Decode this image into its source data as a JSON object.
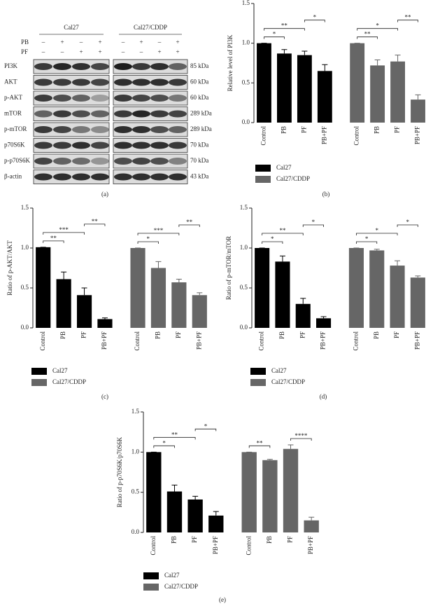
{
  "blot": {
    "panel_label": "(a)",
    "groups": [
      "Cal27",
      "Cal27/CDDP"
    ],
    "treatments": [
      {
        "name": "PB",
        "signs": [
          "–",
          "+",
          "–",
          "+",
          "–",
          "+",
          "–",
          "+"
        ]
      },
      {
        "name": "PF",
        "signs": [
          "–",
          "–",
          "+",
          "+",
          "–",
          "–",
          "+",
          "+"
        ]
      }
    ],
    "rows": [
      {
        "protein": "PI3K",
        "size": "85 kDa"
      },
      {
        "protein": "AKT",
        "size": "60 kDa"
      },
      {
        "protein": "p-AKT",
        "size": "60 kDa"
      },
      {
        "protein": "mTOR",
        "size": "289 kDa"
      },
      {
        "protein": "p-mTOR",
        "size": "289 kDa"
      },
      {
        "protein": "p70S6K",
        "size": "70 kDa"
      },
      {
        "protein": "p-p70S6K",
        "size": "70 kDa"
      },
      {
        "protein": "β-actin",
        "size": "43 kDa"
      }
    ]
  },
  "chart_data": [
    {
      "type": "bar",
      "panel_label": "(b)",
      "y_label": "Relative level of PI3K",
      "legend": "below",
      "categories": [
        "Control",
        "PB",
        "PF",
        "PB+PF"
      ],
      "ylim": [
        0,
        1.5
      ],
      "yticks": [
        {
          "value": 0,
          "label": "0.0"
        },
        0.5,
        {
          "value": 1,
          "label": "1.0"
        },
        1.5
      ],
      "series": [
        {
          "name": "Cal27",
          "color": "#000000",
          "values": [
            1.0,
            0.87,
            0.85,
            0.65
          ],
          "errors": [
            0,
            0.05,
            0.05,
            0.08
          ],
          "significance": [
            {
              "pair": [
                "Control",
                "PB"
              ],
              "label": "*"
            },
            {
              "pair": [
                "Control",
                "PF"
              ],
              "label": "**"
            },
            {
              "pair": [
                "PF",
                "PB+PF"
              ],
              "label": "*"
            }
          ]
        },
        {
          "name": "Cal27/CDDP",
          "color": "#666666",
          "values": [
            1.0,
            0.72,
            0.77,
            0.29
          ],
          "errors": [
            0,
            0.07,
            0.08,
            0.06
          ],
          "significance": [
            {
              "pair": [
                "Control",
                "PB"
              ],
              "label": "**"
            },
            {
              "pair": [
                "Control",
                "PF"
              ],
              "label": "*"
            },
            {
              "pair": [
                "PF",
                "PB+PF"
              ],
              "label": "**"
            }
          ]
        }
      ]
    },
    {
      "type": "bar",
      "panel_label": "(c)",
      "y_label": "Ratio of p-AKT/AKT",
      "legend": "below",
      "categories": [
        "Control",
        "PB",
        "PF",
        "PB+PF"
      ],
      "ylim": [
        0,
        1.5
      ],
      "yticks": [
        {
          "value": 0,
          "label": "0.0"
        },
        0.5,
        {
          "value": 1,
          "label": "1.0"
        },
        1.5
      ],
      "series": [
        {
          "name": "Cal27",
          "color": "#000000",
          "values": [
            1.01,
            0.61,
            0.41,
            0.11
          ],
          "errors": [
            0,
            0.09,
            0.09,
            0.015
          ],
          "significance": [
            {
              "pair": [
                "Control",
                "PB"
              ],
              "label": "**"
            },
            {
              "pair": [
                "Control",
                "PF"
              ],
              "label": "***"
            },
            {
              "pair": [
                "PF",
                "PB+PF"
              ],
              "label": "**"
            }
          ]
        },
        {
          "name": "Cal27/CDDP",
          "color": "#666666",
          "values": [
            1.0,
            0.75,
            0.57,
            0.41
          ],
          "errors": [
            0,
            0.08,
            0.04,
            0.03
          ],
          "significance": [
            {
              "pair": [
                "Control",
                "PB"
              ],
              "label": "*"
            },
            {
              "pair": [
                "Control",
                "PF"
              ],
              "label": "***"
            },
            {
              "pair": [
                "PF",
                "PB+PF"
              ],
              "label": "**"
            }
          ]
        }
      ]
    },
    {
      "type": "bar",
      "panel_label": "(d)",
      "y_label": "Ratio of p-mTOR/mTOR",
      "legend": "below",
      "categories": [
        "Control",
        "PB",
        "PF",
        "PB+PF"
      ],
      "ylim": [
        0,
        1.5
      ],
      "yticks": [
        {
          "value": 0,
          "label": "0.0"
        },
        0.5,
        {
          "value": 1,
          "label": "1.0"
        },
        1.5
      ],
      "series": [
        {
          "name": "Cal27",
          "color": "#000000",
          "values": [
            1.0,
            0.83,
            0.3,
            0.12
          ],
          "errors": [
            0,
            0.07,
            0.07,
            0.02
          ],
          "significance": [
            {
              "pair": [
                "Control",
                "PB"
              ],
              "label": "*"
            },
            {
              "pair": [
                "Control",
                "PF"
              ],
              "label": "**"
            },
            {
              "pair": [
                "PF",
                "PB+PF"
              ],
              "label": "*"
            }
          ]
        },
        {
          "name": "Cal27/CDDP",
          "color": "#666666",
          "values": [
            1.0,
            0.97,
            0.78,
            0.63
          ],
          "errors": [
            0,
            0.015,
            0.06,
            0.02
          ],
          "significance": [
            {
              "pair": [
                "Control",
                "PB"
              ],
              "label": "*"
            },
            {
              "pair": [
                "Control",
                "PF"
              ],
              "label": "*"
            },
            {
              "pair": [
                "PF",
                "PB+PF"
              ],
              "label": "*"
            }
          ]
        }
      ]
    },
    {
      "type": "bar",
      "panel_label": "(e)",
      "y_label": "Ratio of p-p70S6K/p70S6K",
      "legend": "below",
      "categories": [
        "Control",
        "PB",
        "PF",
        "PB+PF"
      ],
      "ylim": [
        0,
        1.5
      ],
      "yticks": [
        {
          "value": 0,
          "label": "0.0"
        },
        0.5,
        {
          "value": 1,
          "label": "1.0"
        },
        1.5
      ],
      "series": [
        {
          "name": "Cal27",
          "color": "#000000",
          "values": [
            1.0,
            0.51,
            0.41,
            0.21
          ],
          "errors": [
            0,
            0.08,
            0.04,
            0.05
          ],
          "significance": [
            {
              "pair": [
                "Control",
                "PB"
              ],
              "label": "*"
            },
            {
              "pair": [
                "Control",
                "PF"
              ],
              "label": "**"
            },
            {
              "pair": [
                "PF",
                "PB+PF"
              ],
              "label": "*"
            }
          ]
        },
        {
          "name": "Cal27/CDDP",
          "color": "#666666",
          "values": [
            1.0,
            0.9,
            1.04,
            0.15
          ],
          "errors": [
            0,
            0.01,
            0.05,
            0.04
          ],
          "significance": [
            {
              "pair": [
                "Control",
                "PB"
              ],
              "label": "**"
            },
            {
              "pair": [
                "PF",
                "PB+PF"
              ],
              "label": "****"
            }
          ]
        }
      ]
    }
  ]
}
